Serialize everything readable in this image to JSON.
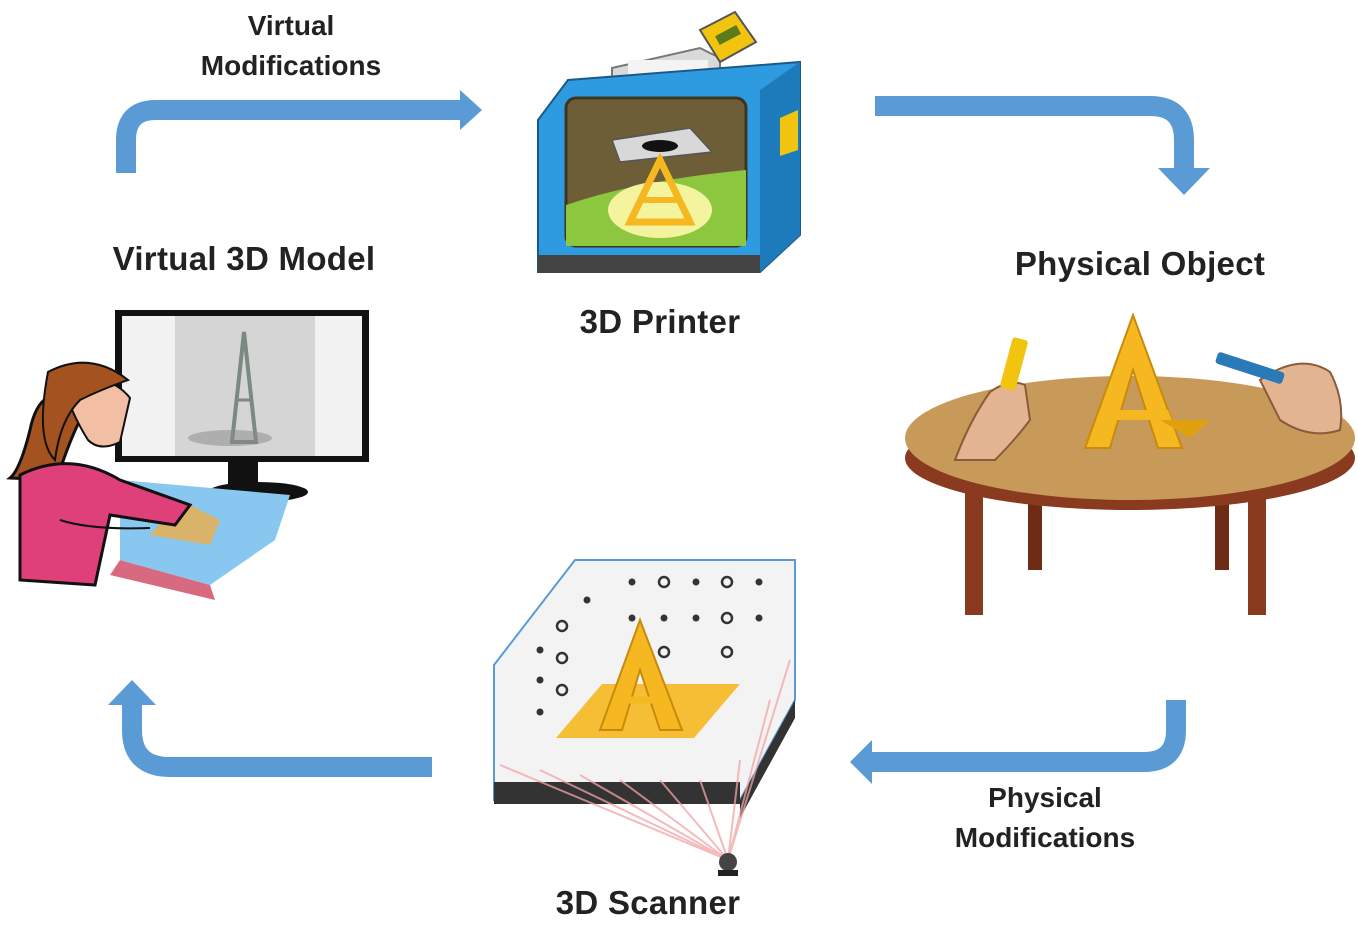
{
  "nodes": {
    "virtual_model": "Virtual 3D Model",
    "printer": "3D Printer",
    "physical_object": "Physical Object",
    "scanner": "3D Scanner"
  },
  "edges": {
    "virtual_mods_line1": "Virtual",
    "virtual_mods_line2": "Modifications",
    "physical_mods_line1": "Physical",
    "physical_mods_line2": "Modifications"
  },
  "colors": {
    "arrow": "#5b9bd5",
    "tower": "#f5b820",
    "printer_body": "#2e9be0",
    "table_top": "#c89a5a",
    "table_legs": "#8a3a1e",
    "person_shirt": "#e0407a",
    "hair": "#a4521f"
  },
  "icons": [
    "computer-user-icon",
    "printer-icon",
    "table-with-tower-icon",
    "scanner-icon"
  ]
}
